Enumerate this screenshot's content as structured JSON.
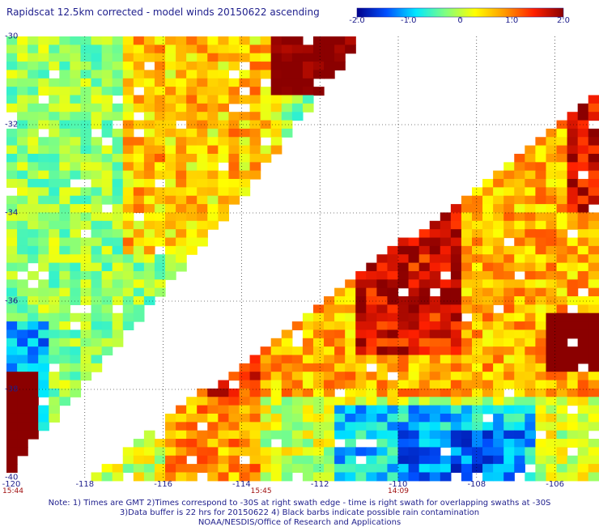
{
  "title": "Rapidscat 12.5km corrected - model winds 20150622 ascending",
  "colorbar": {
    "min": -2.0,
    "max": 2.0,
    "ticks": [
      "-2.0",
      "-1.0",
      "0",
      "1.0",
      "2.0"
    ],
    "colors": [
      "#00008b",
      "#0050ff",
      "#00e8ff",
      "#80ff80",
      "#ffff00",
      "#ff9a00",
      "#ff2000",
      "#8b0000"
    ]
  },
  "axes": {
    "lon_range": [
      -120,
      -105
    ],
    "lat_range": [
      -40,
      -30
    ],
    "y_ticks": [
      "-30",
      "-32",
      "-34",
      "-36",
      "-38",
      "-40"
    ],
    "x_ticks": [
      "-120",
      "-118",
      "-116",
      "-114",
      "-112",
      "-110",
      "-108",
      "-106"
    ],
    "time_labels": [
      {
        "lon": -120,
        "text": "15:44"
      },
      {
        "lon": -113.5,
        "text": "15:45"
      },
      {
        "lon": -110,
        "text": "14:09"
      }
    ],
    "grid": true
  },
  "swaths": [
    {
      "name": "west",
      "polygon": [
        [
          -120,
          -30
        ],
        [
          -110.9,
          -30
        ],
        [
          -114.2,
          -33.9
        ],
        [
          -120,
          -40
        ]
      ],
      "tendency": "warm-north"
    },
    {
      "name": "east",
      "polygon": [
        [
          -117.9,
          -40
        ],
        [
          -105,
          -31.4
        ],
        [
          -105,
          -40
        ]
      ],
      "tendency": "warm-north-cool-south"
    }
  ],
  "notes": [
    "Note: 1) Times are GMT 2)Times correspond to -30S at right swath edge - time is right swath for overlapping swaths at -30S",
    "3)Data buffer is 22 hrs for 20150622 4) Black barbs indicate possible rain contamination",
    "NOAA/NESDIS/Office of Research and Applications"
  ]
}
